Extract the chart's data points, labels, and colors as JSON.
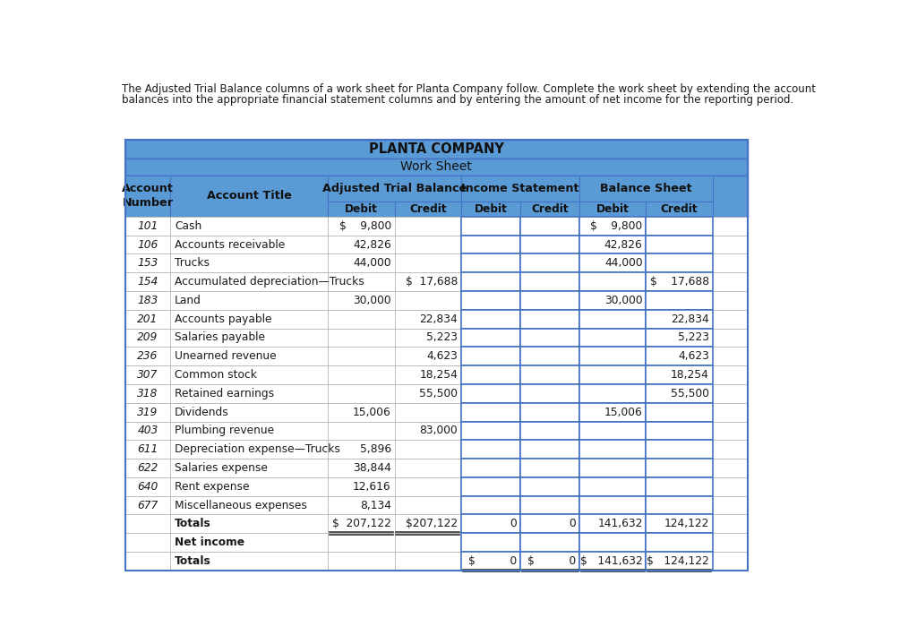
{
  "intro_text_line1": "The Adjusted Trial Balance columns of a work sheet for Planta Company follow. Complete the work sheet by extending the account",
  "intro_text_line2": "balances into the appropriate financial statement columns and by entering the amount of net income for the reporting period.",
  "company_title": "PLANTA COMPANY",
  "sheet_title": "Work Sheet",
  "rows": [
    [
      "101",
      "Cash",
      "$    9,800",
      "",
      "",
      "",
      "$    9,800",
      ""
    ],
    [
      "106",
      "Accounts receivable",
      "42,826",
      "",
      "",
      "",
      "42,826",
      ""
    ],
    [
      "153",
      "Trucks",
      "44,000",
      "",
      "",
      "",
      "44,000",
      ""
    ],
    [
      "154",
      "Accumulated depreciation—Trucks",
      "",
      "$  17,688",
      "",
      "",
      "",
      "$    17,688"
    ],
    [
      "183",
      "Land",
      "30,000",
      "",
      "",
      "",
      "30,000",
      ""
    ],
    [
      "201",
      "Accounts payable",
      "",
      "22,834",
      "",
      "",
      "",
      "22,834"
    ],
    [
      "209",
      "Salaries payable",
      "",
      "5,223",
      "",
      "",
      "",
      "5,223"
    ],
    [
      "236",
      "Unearned revenue",
      "",
      "4,623",
      "",
      "",
      "",
      "4,623"
    ],
    [
      "307",
      "Common stock",
      "",
      "18,254",
      "",
      "",
      "",
      "18,254"
    ],
    [
      "318",
      "Retained earnings",
      "",
      "55,500",
      "",
      "",
      "",
      "55,500"
    ],
    [
      "319",
      "Dividends",
      "15,006",
      "",
      "",
      "",
      "15,006",
      ""
    ],
    [
      "403",
      "Plumbing revenue",
      "",
      "83,000",
      "",
      "",
      "",
      ""
    ],
    [
      "611",
      "Depreciation expense—Trucks",
      "5,896",
      "",
      "",
      "",
      "",
      ""
    ],
    [
      "622",
      "Salaries expense",
      "38,844",
      "",
      "",
      "",
      "",
      ""
    ],
    [
      "640",
      "Rent expense",
      "12,616",
      "",
      "",
      "",
      "",
      ""
    ],
    [
      "677",
      "Miscellaneous expenses",
      "8,134",
      "",
      "",
      "",
      "",
      ""
    ],
    [
      "",
      "Totals",
      "$  207,122",
      "$207,122",
      "0",
      "0",
      "141,632",
      "124,122"
    ],
    [
      "",
      "Net income",
      "",
      "",
      "",
      "",
      "",
      ""
    ],
    [
      "",
      "Totals",
      "",
      "",
      "$          0",
      "$          0",
      "$   141,632",
      "$   124,122"
    ]
  ],
  "header_blue": "#5b9bd5",
  "header_blue_dark": "#4472c4",
  "row_bg": "#ffffff",
  "border_thin": "#b0b0b0",
  "border_blue": "#4472c4",
  "text_color": "#1a1a1a",
  "font_size": 8.8,
  "header_font_size": 9.2,
  "title_font_size": 10.5
}
